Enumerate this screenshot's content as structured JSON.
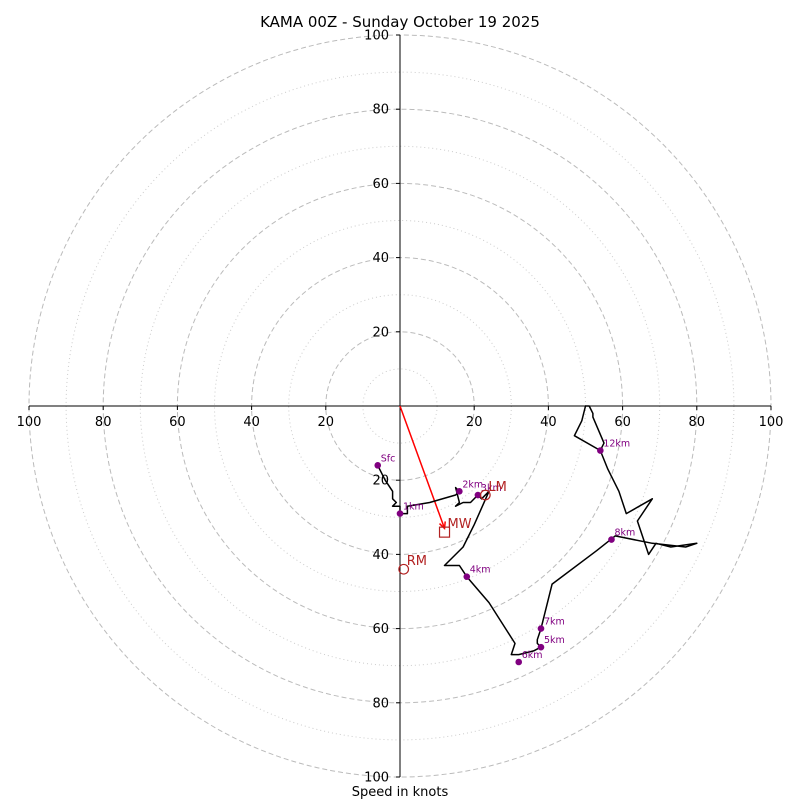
{
  "chart_data": {
    "type": "hodograph",
    "title": "KAMA 00Z - Sunday October 19 2025",
    "xlabel": "Speed in knots",
    "range": [
      -100,
      100
    ],
    "x_ticks": [
      {
        "value": -100,
        "label": "100"
      },
      {
        "value": -80,
        "label": "80"
      },
      {
        "value": -60,
        "label": "60"
      },
      {
        "value": -40,
        "label": "40"
      },
      {
        "value": -20,
        "label": "20"
      },
      {
        "value": 20,
        "label": "20"
      },
      {
        "value": 40,
        "label": "40"
      },
      {
        "value": 60,
        "label": "60"
      },
      {
        "value": 80,
        "label": "80"
      },
      {
        "value": 100,
        "label": "100"
      }
    ],
    "y_ticks": [
      {
        "value": 100,
        "label": "100"
      },
      {
        "value": 80,
        "label": "80"
      },
      {
        "value": 60,
        "label": "60"
      },
      {
        "value": 40,
        "label": "40"
      },
      {
        "value": 20,
        "label": "20"
      },
      {
        "value": -20,
        "label": "20"
      },
      {
        "value": -40,
        "label": "40"
      },
      {
        "value": -60,
        "label": "60"
      },
      {
        "value": -80,
        "label": "80"
      },
      {
        "value": -100,
        "label": "100"
      }
    ],
    "rings_major": [
      20,
      40,
      60,
      80,
      100
    ],
    "rings_minor": [
      10,
      30,
      50,
      70,
      90
    ],
    "trace": [
      [
        -6,
        -16
      ],
      [
        -4,
        -20
      ],
      [
        -2,
        -23
      ],
      [
        -2,
        -25
      ],
      [
        -1,
        -26
      ],
      [
        -2,
        -27
      ],
      [
        0,
        -27
      ],
      [
        0,
        -29
      ],
      [
        2,
        -29
      ],
      [
        2,
        -27
      ],
      [
        8,
        -26
      ],
      [
        15,
        -24
      ],
      [
        16,
        -23
      ],
      [
        15,
        -22
      ],
      [
        16,
        -26
      ],
      [
        15,
        -27
      ],
      [
        17,
        -26
      ],
      [
        19,
        -26
      ],
      [
        21,
        -24
      ],
      [
        22,
        -25
      ],
      [
        24,
        -23
      ],
      [
        20,
        -32
      ],
      [
        17,
        -38
      ],
      [
        12,
        -43
      ],
      [
        16,
        -43
      ],
      [
        18,
        -46
      ],
      [
        24,
        -53
      ],
      [
        31,
        -64
      ],
      [
        30,
        -67
      ],
      [
        32,
        -67
      ],
      [
        36,
        -66
      ],
      [
        38,
        -65
      ],
      [
        37,
        -64
      ],
      [
        37,
        -63
      ],
      [
        38,
        -60
      ],
      [
        41,
        -48
      ],
      [
        53,
        -39
      ],
      [
        58,
        -35
      ],
      [
        68,
        -37
      ],
      [
        77,
        -38
      ],
      [
        80,
        -37
      ],
      [
        73,
        -38
      ],
      [
        69,
        -37
      ],
      [
        67,
        -40
      ],
      [
        64,
        -31
      ],
      [
        68,
        -25
      ],
      [
        61,
        -29
      ],
      [
        59,
        -23
      ],
      [
        56,
        -17
      ],
      [
        54,
        -12
      ],
      [
        47,
        -8
      ],
      [
        49,
        -4
      ],
      [
        50,
        0
      ],
      [
        51,
        0
      ],
      [
        52,
        -2
      ],
      [
        52,
        -3
      ],
      [
        55,
        -10
      ],
      [
        54,
        -12
      ]
    ],
    "height_markers": [
      {
        "label": "Sfc",
        "u": -6,
        "v": -16
      },
      {
        "label": "1km",
        "u": 0,
        "v": -29
      },
      {
        "label": "2km",
        "u": 16,
        "v": -23
      },
      {
        "label": "3km",
        "u": 21,
        "v": -24
      },
      {
        "label": "4km",
        "u": 18,
        "v": -46
      },
      {
        "label": "5km",
        "u": 38,
        "v": -65
      },
      {
        "label": "6km",
        "u": 32,
        "v": -69
      },
      {
        "label": "7km",
        "u": 38,
        "v": -60
      },
      {
        "label": "8km",
        "u": 57,
        "v": -36
      },
      {
        "label": "12km",
        "u": 54,
        "v": -12
      }
    ],
    "motions": [
      {
        "label": "LM",
        "u": 23,
        "v": -24,
        "marker": "circle"
      },
      {
        "label": "MW",
        "u": 12,
        "v": -34,
        "marker": "square"
      },
      {
        "label": "RM",
        "u": 1,
        "v": -44,
        "marker": "circle"
      }
    ],
    "mean_wind_vector": {
      "u": 12,
      "v": -33
    },
    "colors": {
      "trace": "#000000",
      "marker": "#800080",
      "motion": "#b22222",
      "vector": "#ff0000",
      "ring": "#bbbbbb"
    }
  }
}
